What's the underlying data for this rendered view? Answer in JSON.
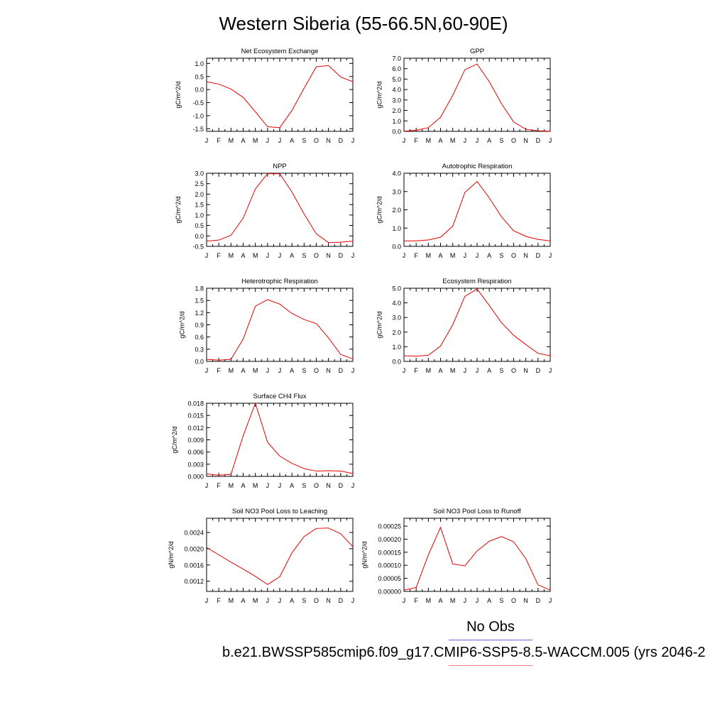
{
  "title": "Western Siberia (55-66.5N,60-90E)",
  "legend": {
    "label": "No Obs",
    "caption": "b.e21.BWSSP585cmip6.f09_g17.CMIP6-SSP5-8.5-WACCM.005 (yrs 2046-2",
    "colors": {
      "obs": "#6b6bd6",
      "model": "#e60000"
    }
  },
  "chart_data": [
    {
      "type": "line",
      "title": "Net Ecosystem Exchange",
      "ylabel": "gC/m^2/d",
      "categories": [
        "J",
        "F",
        "M",
        "A",
        "M",
        "J",
        "J",
        "A",
        "S",
        "O",
        "N",
        "D",
        "J"
      ],
      "ylim": [
        -1.6,
        1.2
      ],
      "yticks": [
        -1.5,
        -1.0,
        -0.5,
        0.0,
        0.5,
        1.0
      ],
      "yticklabels": [
        "-1.5",
        "-1.0",
        "-0.5",
        "0.0",
        "0.5",
        "1.0"
      ],
      "values": [
        0.3,
        0.21,
        0.02,
        -0.3,
        -0.85,
        -1.42,
        -1.46,
        -0.8,
        0.05,
        0.87,
        0.92,
        0.48,
        0.3
      ]
    },
    {
      "type": "line",
      "title": "GPP",
      "ylabel": "gC/m^2/d",
      "categories": [
        "J",
        "F",
        "M",
        "A",
        "M",
        "J",
        "J",
        "A",
        "S",
        "O",
        "N",
        "D",
        "J"
      ],
      "ylim": [
        0,
        7
      ],
      "yticks": [
        0,
        1,
        2,
        3,
        4,
        5,
        6,
        7
      ],
      "yticklabels": [
        "0.0",
        "1.0",
        "2.0",
        "3.0",
        "4.0",
        "5.0",
        "6.0",
        "7.0"
      ],
      "values": [
        0.02,
        0.1,
        0.35,
        1.35,
        3.45,
        5.9,
        6.45,
        4.75,
        2.65,
        0.9,
        0.2,
        0.05,
        0.02
      ]
    },
    {
      "type": "line",
      "title": "NPP",
      "ylabel": "gC/m^2/d",
      "categories": [
        "J",
        "F",
        "M",
        "A",
        "M",
        "J",
        "J",
        "A",
        "S",
        "O",
        "N",
        "D",
        "J"
      ],
      "ylim": [
        -0.5,
        3.0
      ],
      "yticks": [
        -0.5,
        0.0,
        0.5,
        1.0,
        1.5,
        2.0,
        2.5,
        3.0
      ],
      "yticklabels": [
        "-0.5",
        "0.0",
        "0.5",
        "1.0",
        "1.5",
        "2.0",
        "2.5",
        "3.0"
      ],
      "values": [
        -0.25,
        -0.2,
        0.03,
        0.85,
        2.25,
        2.98,
        2.98,
        2.1,
        1.05,
        0.1,
        -0.32,
        -0.3,
        -0.25
      ]
    },
    {
      "type": "line",
      "title": "Autotrophic Respiration",
      "ylabel": "gC/m^2/d",
      "categories": [
        "J",
        "F",
        "M",
        "A",
        "M",
        "J",
        "J",
        "A",
        "S",
        "O",
        "N",
        "D",
        "J"
      ],
      "ylim": [
        0,
        4
      ],
      "yticks": [
        0,
        1,
        2,
        3,
        4
      ],
      "yticklabels": [
        "0.0",
        "1.0",
        "2.0",
        "3.0",
        "4.0"
      ],
      "values": [
        0.3,
        0.3,
        0.35,
        0.5,
        1.1,
        2.95,
        3.55,
        2.65,
        1.62,
        0.85,
        0.55,
        0.38,
        0.3
      ]
    },
    {
      "type": "line",
      "title": "Heterotrophic Respiration",
      "ylabel": "gC/m^2/d",
      "categories": [
        "J",
        "F",
        "M",
        "A",
        "M",
        "J",
        "J",
        "A",
        "S",
        "O",
        "N",
        "D",
        "J"
      ],
      "ylim": [
        0,
        1.8
      ],
      "yticks": [
        0,
        0.3,
        0.6,
        0.9,
        1.2,
        1.5,
        1.8
      ],
      "yticklabels": [
        "0.0",
        "0.3",
        "0.6",
        "0.9",
        "1.2",
        "1.5",
        "1.8"
      ],
      "values": [
        0.05,
        0.03,
        0.05,
        0.55,
        1.36,
        1.52,
        1.41,
        1.18,
        1.03,
        0.93,
        0.58,
        0.17,
        0.06
      ]
    },
    {
      "type": "line",
      "title": "Ecosystem Respiration",
      "ylabel": "gC/m^2/d",
      "categories": [
        "J",
        "F",
        "M",
        "A",
        "M",
        "J",
        "J",
        "A",
        "S",
        "O",
        "N",
        "D",
        "J"
      ],
      "ylim": [
        0,
        5
      ],
      "yticks": [
        0,
        1,
        2,
        3,
        4,
        5
      ],
      "yticklabels": [
        "0.0",
        "1.0",
        "2.0",
        "3.0",
        "4.0",
        "5.0"
      ],
      "values": [
        0.38,
        0.36,
        0.42,
        1.05,
        2.5,
        4.45,
        4.95,
        3.82,
        2.65,
        1.78,
        1.15,
        0.55,
        0.38
      ]
    },
    {
      "type": "line",
      "title": "Surface CH4 Flux",
      "ylabel": "gC/m^2/d",
      "categories": [
        "J",
        "F",
        "M",
        "A",
        "M",
        "J",
        "J",
        "A",
        "S",
        "O",
        "N",
        "D",
        "J"
      ],
      "ylim": [
        0,
        0.018
      ],
      "yticks": [
        0,
        0.003,
        0.006,
        0.009,
        0.012,
        0.015,
        0.018
      ],
      "yticklabels": [
        "0.000",
        "0.003",
        "0.006",
        "0.009",
        "0.012",
        "0.015",
        "0.018"
      ],
      "values": [
        0.0006,
        0.0003,
        0.0005,
        0.01,
        0.018,
        0.0084,
        0.005,
        0.0032,
        0.0019,
        0.0013,
        0.0014,
        0.0013,
        0.0007
      ]
    },
    {
      "type": "line",
      "title": "Soil NO3 Pool Loss to Leaching",
      "ylabel": "gN/m^2/d",
      "categories": [
        "J",
        "F",
        "M",
        "A",
        "M",
        "J",
        "J",
        "A",
        "S",
        "O",
        "N",
        "D",
        "J"
      ],
      "ylim": [
        0.00095,
        0.00275
      ],
      "yticks": [
        0.0012,
        0.0016,
        0.002,
        0.0024
      ],
      "yticklabels": [
        "0.0012",
        "0.0016",
        "0.0020",
        "0.0024"
      ],
      "values": [
        0.00203,
        0.00185,
        0.00167,
        0.0015,
        0.00132,
        0.00112,
        0.00131,
        0.0019,
        0.0023,
        0.0025,
        0.00251,
        0.00237,
        0.00205
      ]
    },
    {
      "type": "line",
      "title": "Soil NO3 Pool Loss to Runoff",
      "ylabel": "gN/m^2/d",
      "categories": [
        "J",
        "F",
        "M",
        "A",
        "M",
        "J",
        "J",
        "A",
        "S",
        "O",
        "N",
        "D",
        "J"
      ],
      "ylim": [
        0,
        0.00028
      ],
      "yticks": [
        0,
        5e-05,
        0.0001,
        0.00015,
        0.0002,
        0.00025
      ],
      "yticklabels": [
        "0.00000",
        "0.00005",
        "0.00010",
        "0.00015",
        "0.00020",
        "0.00025"
      ],
      "values": [
        5e-06,
        1.5e-05,
        0.00014,
        0.000245,
        0.000105,
        9.8e-05,
        0.000155,
        0.000192,
        0.00021,
        0.00019,
        0.000125,
        2.5e-05,
        5e-06
      ]
    }
  ]
}
